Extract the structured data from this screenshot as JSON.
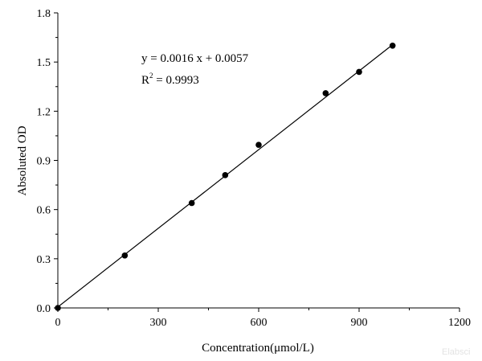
{
  "chart_data": {
    "type": "scatter",
    "title": "",
    "xlabel": "Concentration(μmol/L)",
    "ylabel": "Absoluted OD",
    "xlim": [
      0,
      1200
    ],
    "ylim": [
      0,
      1.8
    ],
    "x_ticks": [
      "0",
      "300",
      "600",
      "900",
      "1200"
    ],
    "y_ticks": [
      "0.0",
      "0.3",
      "0.6",
      "0.9",
      "1.2",
      "1.5",
      "1.8"
    ],
    "grid": false,
    "legend": "none",
    "series": [
      {
        "type": "scatter",
        "x": [
          0,
          200,
          400,
          500,
          600,
          800,
          900,
          1000
        ],
        "y": [
          0.0,
          0.32,
          0.64,
          0.81,
          0.995,
          1.31,
          1.44,
          1.6
        ]
      },
      {
        "type": "line",
        "x": [
          0,
          1000
        ],
        "y": [
          0.0057,
          1.6057
        ]
      }
    ],
    "annotations": {
      "equation": "y = 0.0016 x + 0.0057",
      "r2_prefix": "R",
      "r2_sup": "2",
      "r2_value": " = 0.9993"
    },
    "colors": {
      "marker": "#000000",
      "line": "#000000"
    }
  },
  "watermark": "Elabsci"
}
